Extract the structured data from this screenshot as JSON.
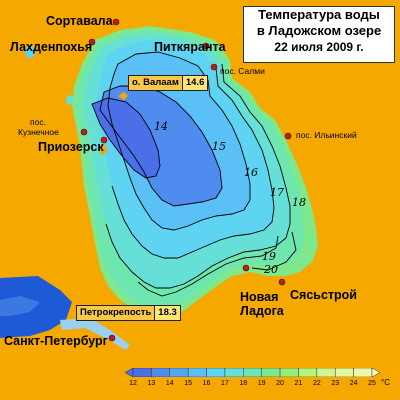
{
  "title": {
    "line1": "Температура воды",
    "line2": "в Ладожском озере",
    "line3": "22 июля 2009 г."
  },
  "cities": {
    "sortavala": "Сортавала",
    "lakhdenpokhya": "Лахденпохья",
    "pitkyaranta": "Питкяранта",
    "salmi": "пос. Салми",
    "kuznechnoe_1": "пос.",
    "kuznechnoe_2": "Кузнечное",
    "priozersk": "Приозерск",
    "ilyinsky": "пос. Ильинский",
    "novaya_ladoga_1": "Новая",
    "novaya_ladoga_2": "Ладога",
    "syasstroy": "Сясьстрой",
    "spb": "Санкт-Петербург"
  },
  "stations": [
    {
      "name": "о. Валаам",
      "value": "14.6"
    },
    {
      "name": "Петрокрепость",
      "value": "18.3"
    }
  ],
  "isotherm_labels": [
    "14",
    "15",
    "16",
    "17",
    "18",
    "19",
    "20"
  ],
  "legend": {
    "ticks": [
      "12",
      "13",
      "14",
      "15",
      "16",
      "17",
      "18",
      "19",
      "20",
      "21",
      "22",
      "23",
      "24",
      "25"
    ],
    "unit": "°С",
    "colors": [
      "#4a6fe8",
      "#4f8cef",
      "#55a6f2",
      "#5ac0f5",
      "#5fd4f2",
      "#66e0d6",
      "#6fe6b0",
      "#7ee88a",
      "#9aee74",
      "#b8f27a",
      "#d2f48a",
      "#e6f69a",
      "#f2f6aa",
      "#fafab8"
    ]
  },
  "colors": {
    "land": "#f5a800",
    "neva_bay": "#1e5ad6"
  }
}
